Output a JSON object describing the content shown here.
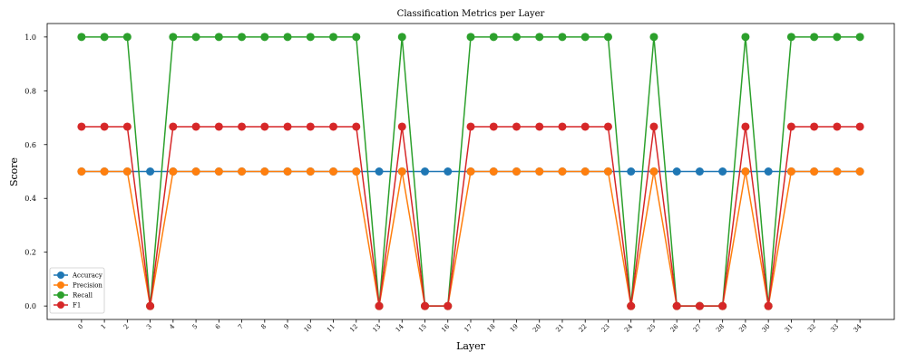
{
  "chart_data": {
    "type": "line",
    "title": "Classification Metrics per Layer",
    "xlabel": "Layer",
    "ylabel": "Score",
    "x": [
      0,
      1,
      2,
      3,
      4,
      5,
      6,
      7,
      8,
      9,
      10,
      11,
      12,
      13,
      14,
      15,
      16,
      17,
      18,
      19,
      20,
      21,
      22,
      23,
      24,
      25,
      26,
      27,
      28,
      29,
      30,
      31,
      32,
      33,
      34
    ],
    "x_tick_labels": [
      "0",
      "1",
      "2",
      "3",
      "4",
      "5",
      "6",
      "7",
      "8",
      "9",
      "10",
      "11",
      "12",
      "13",
      "14",
      "15",
      "16",
      "17",
      "18",
      "19",
      "20",
      "21",
      "22",
      "23",
      "24",
      "25",
      "26",
      "27",
      "28",
      "29",
      "30",
      "31",
      "32",
      "33",
      "34"
    ],
    "ylim": [
      -0.05,
      1.05
    ],
    "y_ticks": [
      0.0,
      0.2,
      0.4,
      0.6,
      0.8,
      1.0
    ],
    "y_tick_labels": [
      "0.0",
      "0.2",
      "0.4",
      "0.6",
      "0.8",
      "1.0"
    ],
    "grid": false,
    "legend_position": "lower-left",
    "series": [
      {
        "name": "Accuracy",
        "color": "#1f77b4",
        "values": [
          0.5,
          0.5,
          0.5,
          0.5,
          0.5,
          0.5,
          0.5,
          0.5,
          0.5,
          0.5,
          0.5,
          0.5,
          0.5,
          0.5,
          0.5,
          0.5,
          0.5,
          0.5,
          0.5,
          0.5,
          0.5,
          0.5,
          0.5,
          0.5,
          0.5,
          0.5,
          0.5,
          0.5,
          0.5,
          0.5,
          0.5,
          0.5,
          0.5,
          0.5,
          0.5
        ]
      },
      {
        "name": "Precision",
        "color": "#ff7f0e",
        "values": [
          0.5,
          0.5,
          0.5,
          0.0,
          0.5,
          0.5,
          0.5,
          0.5,
          0.5,
          0.5,
          0.5,
          0.5,
          0.5,
          0.0,
          0.5,
          0.0,
          0.0,
          0.5,
          0.5,
          0.5,
          0.5,
          0.5,
          0.5,
          0.5,
          0.0,
          0.5,
          0.0,
          0.0,
          0.0,
          0.5,
          0.0,
          0.5,
          0.5,
          0.5,
          0.5
        ]
      },
      {
        "name": "Recall",
        "color": "#2ca02c",
        "values": [
          1.0,
          1.0,
          1.0,
          0.0,
          1.0,
          1.0,
          1.0,
          1.0,
          1.0,
          1.0,
          1.0,
          1.0,
          1.0,
          0.0,
          1.0,
          0.0,
          0.0,
          1.0,
          1.0,
          1.0,
          1.0,
          1.0,
          1.0,
          1.0,
          0.0,
          1.0,
          0.0,
          0.0,
          0.0,
          1.0,
          0.0,
          1.0,
          1.0,
          1.0,
          1.0
        ]
      },
      {
        "name": "F1",
        "color": "#d62728",
        "values": [
          0.6667,
          0.6667,
          0.6667,
          0.0,
          0.6667,
          0.6667,
          0.6667,
          0.6667,
          0.6667,
          0.6667,
          0.6667,
          0.6667,
          0.6667,
          0.0,
          0.6667,
          0.0,
          0.0,
          0.6667,
          0.6667,
          0.6667,
          0.6667,
          0.6667,
          0.6667,
          0.6667,
          0.0,
          0.6667,
          0.0,
          0.0,
          0.0,
          0.6667,
          0.0,
          0.6667,
          0.6667,
          0.6667,
          0.6667
        ]
      }
    ]
  }
}
